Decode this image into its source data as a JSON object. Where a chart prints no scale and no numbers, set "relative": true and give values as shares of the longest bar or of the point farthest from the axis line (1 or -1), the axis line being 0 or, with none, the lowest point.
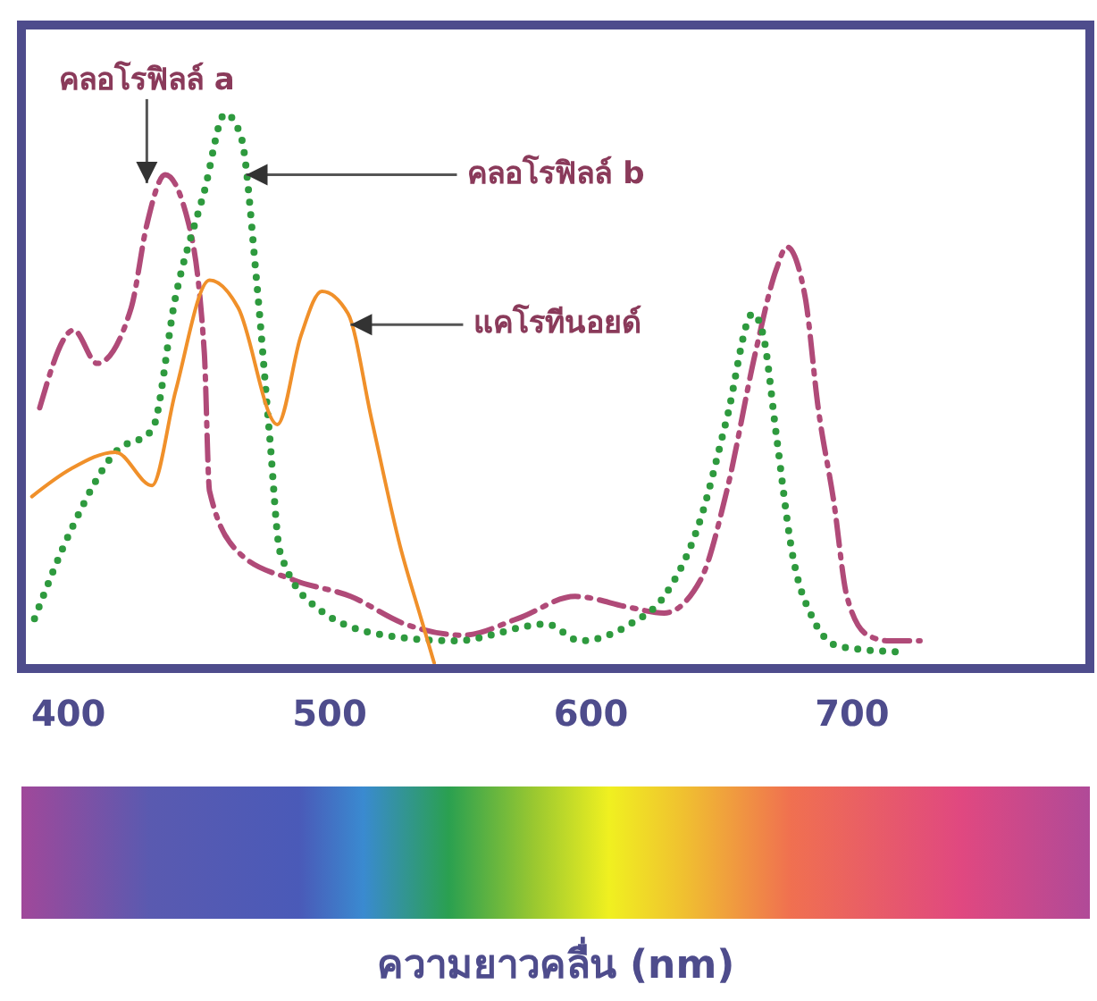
{
  "chart_data": {
    "type": "line",
    "relative": true,
    "tick_labels": "x",
    "marker": "none",
    "xlim": [
      382,
      791
    ],
    "xticks": [
      400,
      500,
      600,
      700
    ],
    "series": [
      {
        "color": "#b04a78",
        "line_style": "dashed",
        "x": [
          389,
          402,
          411,
          424,
          430,
          437,
          445,
          452,
          454,
          465,
          486,
          508,
          529,
          551,
          572,
          594,
          615,
          628,
          642,
          652,
          663,
          671,
          675,
          682,
          687,
          693,
          698,
          706,
          714,
          726
        ],
        "values": [
          0.47,
          0.61,
          0.55,
          0.65,
          0.8,
          0.89,
          0.82,
          0.57,
          0.32,
          0.21,
          0.16,
          0.13,
          0.08,
          0.06,
          0.09,
          0.13,
          0.11,
          0.1,
          0.16,
          0.32,
          0.57,
          0.72,
          0.76,
          0.67,
          0.47,
          0.3,
          0.13,
          0.06,
          0.05,
          0.05
        ]
      },
      {
        "color": "#2e9a3e",
        "line_style": "dotted",
        "x": [
          387,
          401,
          418,
          432,
          441,
          452,
          460,
          466,
          472,
          477,
          481,
          495,
          521,
          548,
          583,
          596,
          615,
          628,
          642,
          652,
          662,
          666,
          671,
          677,
          685,
          695,
          717
        ],
        "values": [
          0.09,
          0.25,
          0.39,
          0.43,
          0.67,
          0.86,
          1,
          0.96,
          0.7,
          0.42,
          0.21,
          0.11,
          0.06,
          0.05,
          0.08,
          0.05,
          0.08,
          0.13,
          0.27,
          0.45,
          0.64,
          0.6,
          0.42,
          0.21,
          0.09,
          0.04,
          0.03
        ]
      },
      {
        "color": "#f0902a",
        "line_style": "solid",
        "x": [
          386,
          401,
          418,
          432,
          441,
          454,
          465,
          480,
          489,
          497,
          507,
          516,
          527,
          535,
          540
        ],
        "values": [
          0.31,
          0.36,
          0.39,
          0.33,
          0.5,
          0.7,
          0.65,
          0.44,
          0.6,
          0.68,
          0.64,
          0.45,
          0.22,
          0.09,
          0.01
        ]
      }
    ],
    "annotations": [
      {
        "text": "คลอโรฟิลล์ a",
        "x": 430,
        "y": 0.875
      },
      {
        "text": "คลอโรฟิลล์ b",
        "x": 468,
        "y": 0.89
      },
      {
        "text": "แคโรทีนอยด์",
        "x": 508,
        "y": 0.62
      },
      "ความยาวคลื่น (nm)"
    ]
  }
}
